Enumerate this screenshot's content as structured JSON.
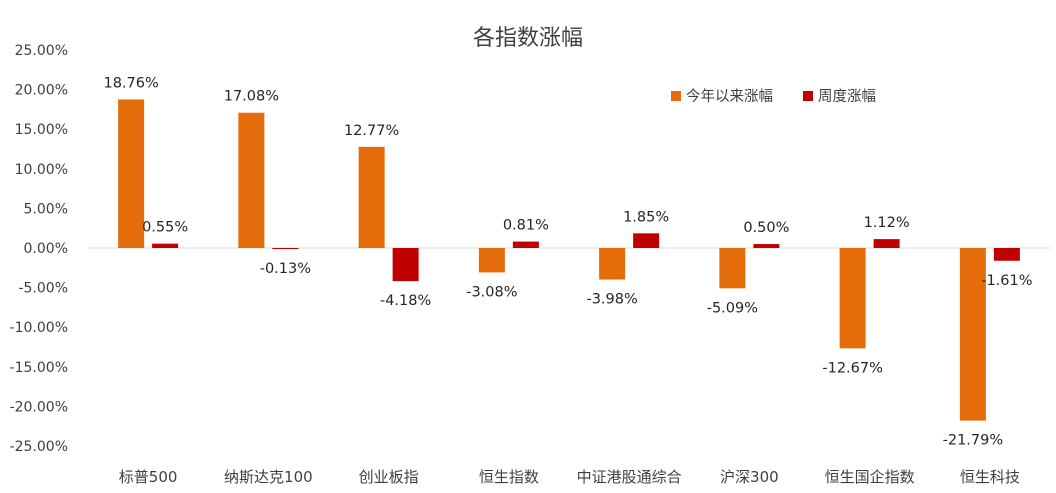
{
  "chart_data": {
    "type": "bar",
    "title": "各指数涨幅",
    "categories": [
      "标普500",
      "纳斯达克100",
      "创业板指",
      "恒生指数",
      "中证港股通综合",
      "沪深300",
      "恒生国企指数",
      "恒生科技"
    ],
    "series": [
      {
        "name": "今年以来涨幅",
        "color": "#E46C0A",
        "values": [
          18.76,
          17.08,
          12.77,
          -3.08,
          -3.98,
          -5.09,
          -12.67,
          -21.79
        ],
        "labels": [
          "18.76%",
          "17.08%",
          "12.77%",
          "-3.08%",
          "-3.98%",
          "-5.09%",
          "-12.67%",
          "-21.79%"
        ]
      },
      {
        "name": "周度涨幅",
        "color": "#C00000",
        "values": [
          0.55,
          -0.13,
          -4.18,
          0.81,
          1.85,
          0.5,
          1.12,
          -1.61
        ],
        "labels": [
          "0.55%",
          "-0.13%",
          "-4.18%",
          "0.81%",
          "1.85%",
          "0.50%",
          "1.12%",
          "-1.61%"
        ]
      }
    ],
    "ylim": [
      -25,
      25
    ],
    "yticks": [
      25,
      20,
      15,
      10,
      5,
      0,
      -5,
      -10,
      -15,
      -20,
      -25
    ],
    "ytick_labels": [
      "25.00%",
      "20.00%",
      "15.00%",
      "10.00%",
      "5.00%",
      "0.00%",
      "-5.00%",
      "-10.00%",
      "-15.00%",
      "-20.00%",
      "-25.00%"
    ],
    "grid": false,
    "legend_position": "top-right"
  }
}
